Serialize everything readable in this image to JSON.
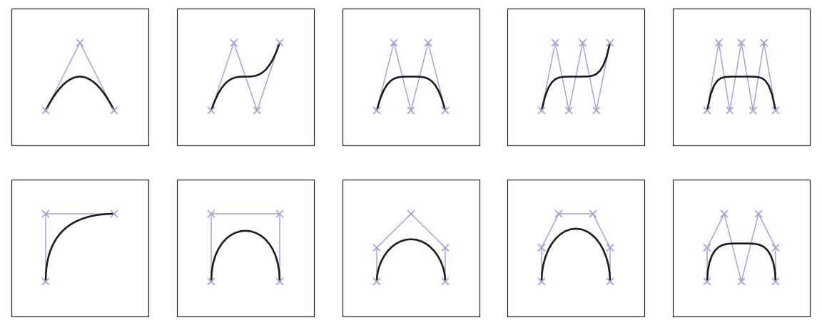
{
  "colors": {
    "background": "#ffffff",
    "panel_border": "#1a1a1a",
    "control_polygon": "#a7a3d0",
    "control_point_marker": "#a7a3d0",
    "curve": "#1a1a1a"
  },
  "marker_icon": "cross-x-icon",
  "curve_kind": "bezier",
  "panels": [
    {
      "row": 1,
      "col": 1,
      "control_points": [
        [
          0,
          0
        ],
        [
          0.5,
          1
        ],
        [
          1,
          0
        ]
      ]
    },
    {
      "row": 1,
      "col": 2,
      "control_points": [
        [
          0,
          0
        ],
        [
          0.33,
          1
        ],
        [
          0.67,
          0
        ],
        [
          1,
          1
        ]
      ]
    },
    {
      "row": 1,
      "col": 3,
      "control_points": [
        [
          0,
          0
        ],
        [
          0.25,
          1
        ],
        [
          0.5,
          0
        ],
        [
          0.75,
          1
        ],
        [
          1,
          0
        ]
      ]
    },
    {
      "row": 1,
      "col": 4,
      "control_points": [
        [
          0,
          0
        ],
        [
          0.2,
          1
        ],
        [
          0.4,
          0
        ],
        [
          0.6,
          1
        ],
        [
          0.8,
          0
        ],
        [
          1,
          1
        ]
      ]
    },
    {
      "row": 1,
      "col": 5,
      "control_points": [
        [
          0,
          0
        ],
        [
          0.17,
          1
        ],
        [
          0.33,
          0
        ],
        [
          0.5,
          1
        ],
        [
          0.67,
          0
        ],
        [
          0.83,
          1
        ],
        [
          1,
          0
        ]
      ]
    },
    {
      "row": 2,
      "col": 1,
      "control_points": [
        [
          0,
          0
        ],
        [
          0,
          1
        ],
        [
          1,
          1
        ]
      ]
    },
    {
      "row": 2,
      "col": 2,
      "control_points": [
        [
          0,
          0
        ],
        [
          0,
          1
        ],
        [
          1,
          1
        ],
        [
          1,
          0
        ]
      ]
    },
    {
      "row": 2,
      "col": 3,
      "control_points": [
        [
          0,
          0
        ],
        [
          0,
          0.5
        ],
        [
          0.5,
          1
        ],
        [
          1,
          0.5
        ],
        [
          1,
          0
        ]
      ]
    },
    {
      "row": 2,
      "col": 4,
      "control_points": [
        [
          0,
          0
        ],
        [
          0,
          0.5
        ],
        [
          0.25,
          1
        ],
        [
          0.75,
          1
        ],
        [
          1,
          0.5
        ],
        [
          1,
          0
        ]
      ]
    },
    {
      "row": 2,
      "col": 5,
      "control_points": [
        [
          0,
          0
        ],
        [
          0,
          0.5
        ],
        [
          0.25,
          1
        ],
        [
          0.5,
          0
        ],
        [
          0.75,
          1
        ],
        [
          1,
          0.5
        ],
        [
          1,
          0
        ]
      ]
    }
  ]
}
